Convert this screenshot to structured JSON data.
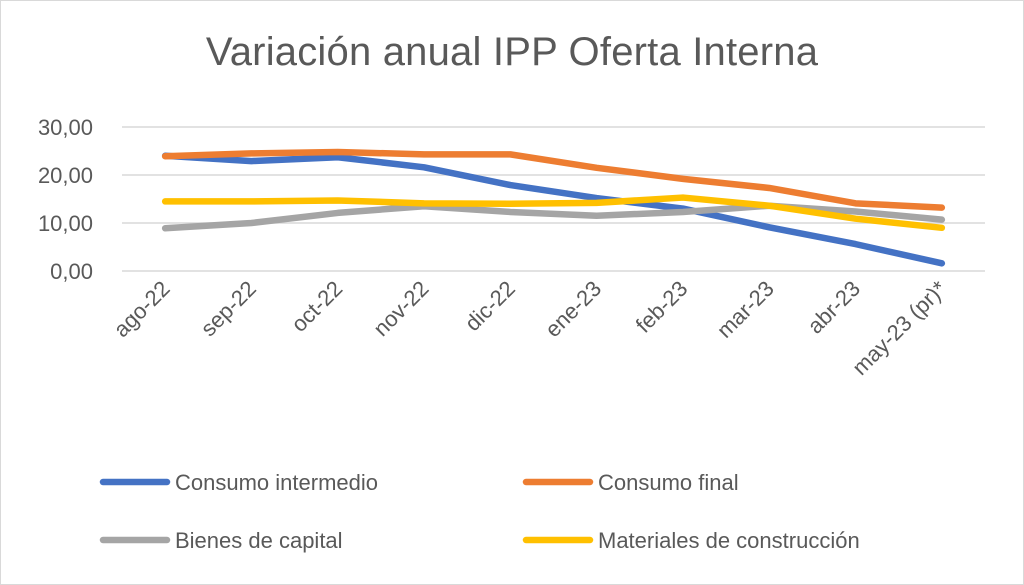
{
  "chart_data": {
    "type": "line",
    "title": "Variación anual IPP Oferta Interna",
    "xlabel": "",
    "ylabel": "",
    "categories": [
      "ago-22",
      "sep-22",
      "oct-22",
      "nov-22",
      "dic-22",
      "ene-23",
      "feb-23",
      "mar-23",
      "abr-23",
      "may-23 (pr)*"
    ],
    "ylim": [
      0,
      30
    ],
    "yticks": [
      0,
      10,
      20,
      30
    ],
    "ytick_labels": [
      "0,00",
      "10,00",
      "20,00",
      "30,00"
    ],
    "grid": true,
    "legend_position": "bottom",
    "series": [
      {
        "name": "Consumo intermedio",
        "color": "#4472c4",
        "values": [
          24.0,
          22.9,
          23.7,
          21.6,
          17.9,
          15.2,
          13.0,
          9.1,
          5.6,
          1.6
        ]
      },
      {
        "name": "Consumo final",
        "color": "#ed7d31",
        "values": [
          23.9,
          24.5,
          24.8,
          24.3,
          24.3,
          21.5,
          19.2,
          17.3,
          14.1,
          13.2
        ]
      },
      {
        "name": "Bienes de capital",
        "color": "#a5a5a5",
        "values": [
          8.9,
          10.0,
          12.1,
          13.5,
          12.3,
          11.5,
          12.3,
          13.6,
          12.4,
          10.7
        ]
      },
      {
        "name": "Materiales de construcción",
        "color": "#ffc000",
        "values": [
          14.5,
          14.5,
          14.7,
          14.1,
          14.0,
          14.2,
          15.3,
          13.6,
          10.9,
          9.0
        ]
      }
    ]
  }
}
